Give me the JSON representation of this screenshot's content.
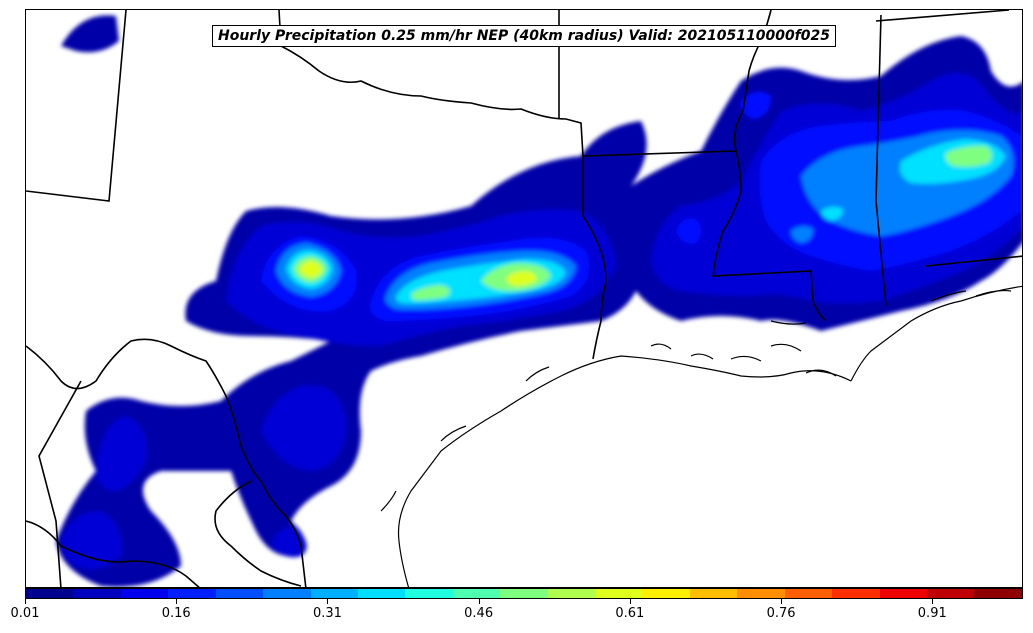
{
  "map": {
    "title": "Hourly Precipitation 0.25 mm/hr NEP (40km radius) Valid: 202105110000f025",
    "layers": [
      "state-boundaries",
      "coastline",
      "precipitation-probability-fill"
    ]
  },
  "colorbar": {
    "colors": [
      "#00008f",
      "#0000bf",
      "#0000ef",
      "#001fff",
      "#004fff",
      "#007fff",
      "#00afff",
      "#00dfff",
      "#1fffdf",
      "#4fffaf",
      "#7fff7f",
      "#afff4f",
      "#dfff1f",
      "#ffef00",
      "#ffbf00",
      "#ff8f00",
      "#ff5f00",
      "#ff2f00",
      "#ef0000",
      "#bf0000",
      "#8f0000"
    ],
    "tick_labels": [
      "0.01",
      "0.16",
      "0.31",
      "0.46",
      "0.61",
      "0.76",
      "0.91"
    ],
    "min": 0.01,
    "max": 1.0
  }
}
